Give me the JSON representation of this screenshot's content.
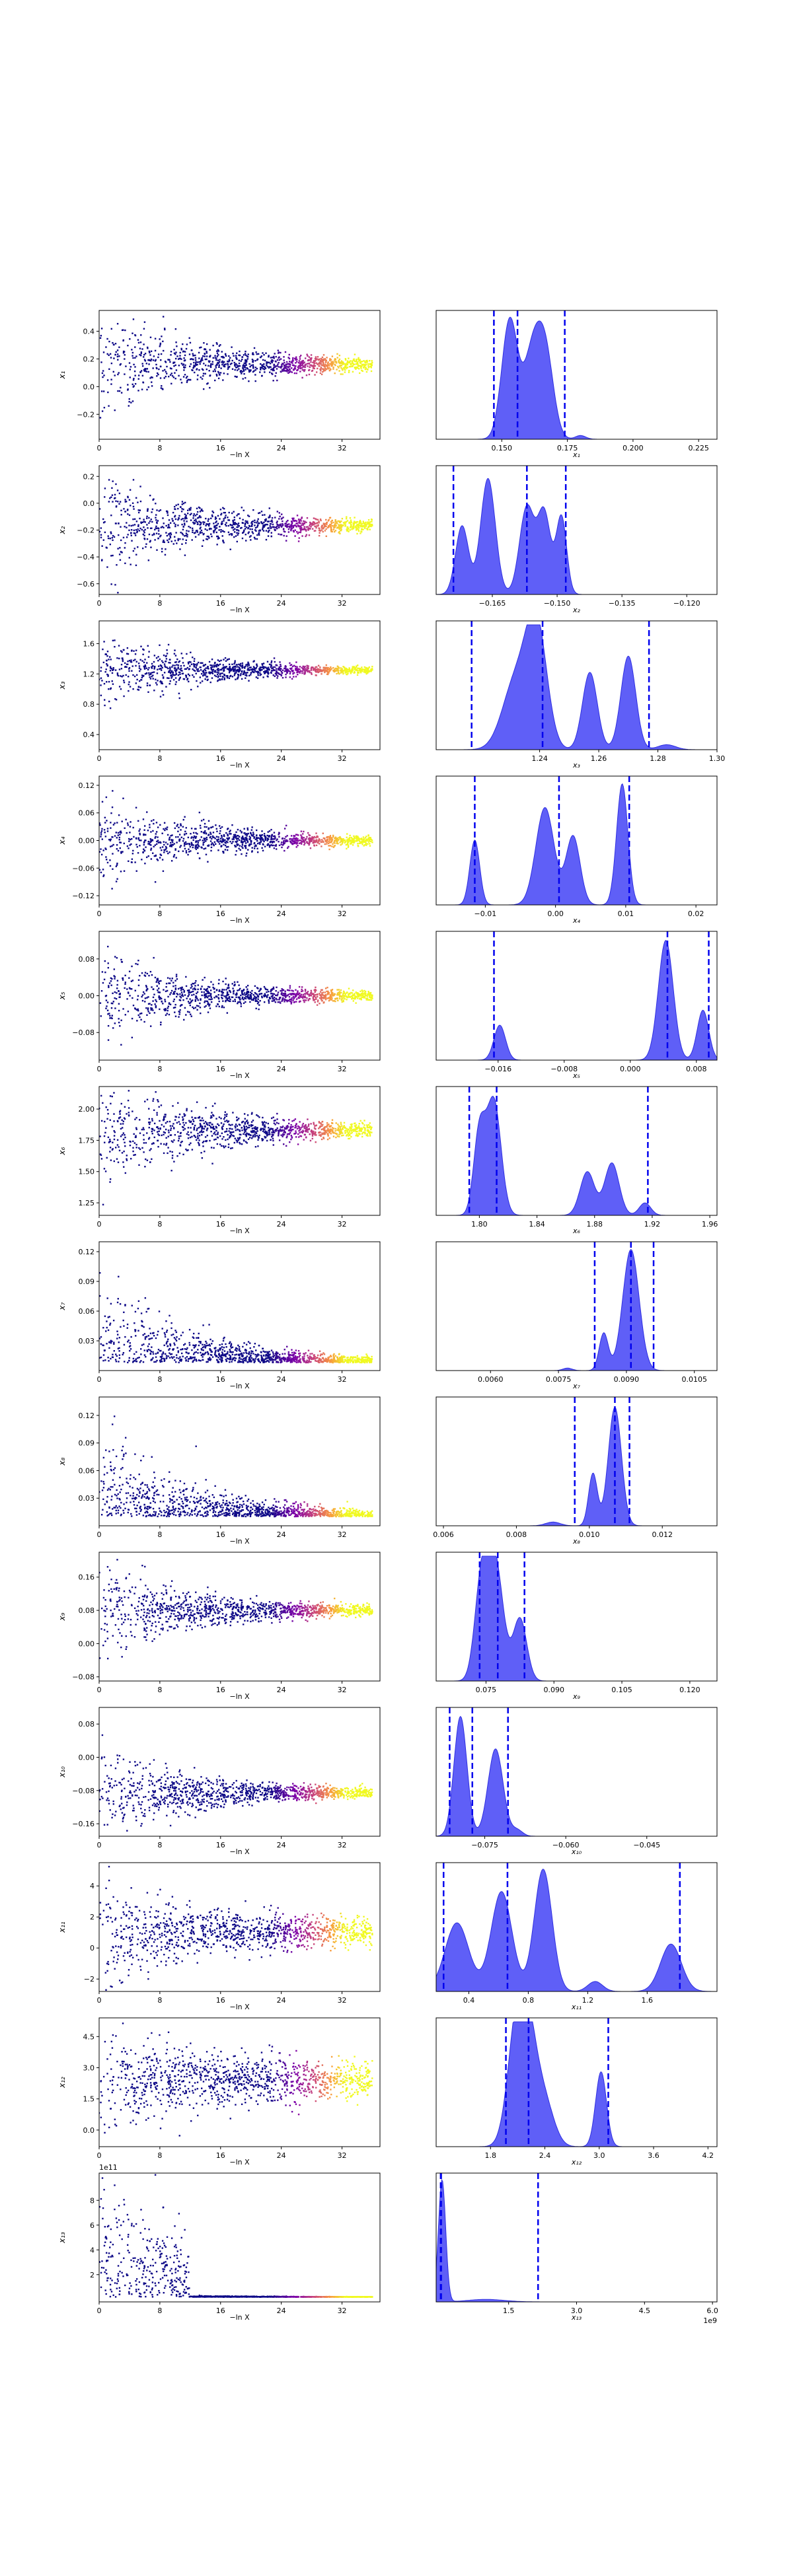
{
  "chart_data": [
    {
      "row": 1,
      "param": "x_1",
      "trace": {
        "type": "scatter",
        "xlabel": "−ln X",
        "ylabel": "x_1",
        "xlim": [
          0,
          37
        ],
        "xticks": [
          "0",
          "8",
          "16",
          "24",
          "32"
        ],
        "ylim": [
          -0.38,
          0.55
        ],
        "yticks": [
          "−0.2",
          "0.0",
          "0.2",
          "0.4"
        ],
        "yvals": [
          -0.2,
          0.0,
          0.2,
          0.4
        ],
        "center": 0.16,
        "spread_start": 0.2,
        "spread_end": 0.015,
        "scatter_end": 36
      },
      "posterior": {
        "type": "area",
        "xlabel": "x_1",
        "xlim": [
          0.125,
          0.232
        ],
        "xticks": [
          "0.150",
          "0.175",
          "0.200",
          "0.225"
        ],
        "xvals": [
          0.15,
          0.175,
          0.2,
          0.225
        ],
        "quantiles": [
          0.147,
          0.156,
          0.174
        ],
        "peaks": [
          {
            "x": 0.153,
            "h": 0.95,
            "w": 0.003
          },
          {
            "x": 0.162,
            "h": 0.72,
            "w": 0.0035
          },
          {
            "x": 0.167,
            "h": 0.55,
            "w": 0.003
          },
          {
            "x": 0.18,
            "h": 0.03,
            "w": 0.002
          }
        ]
      }
    },
    {
      "row": 2,
      "param": "x_2",
      "trace": {
        "type": "scatter",
        "xlabel": "−ln X",
        "ylabel": "x_2",
        "xlim": [
          0,
          37
        ],
        "xticks": [
          "0",
          "8",
          "16",
          "24",
          "32"
        ],
        "ylim": [
          -0.68,
          0.28
        ],
        "yticks": [
          "−0.6",
          "−0.4",
          "−0.2",
          "0.0",
          "0.2"
        ],
        "yvals": [
          -0.6,
          -0.4,
          -0.2,
          0.0,
          0.2
        ],
        "center": -0.17,
        "spread_start": 0.2,
        "spread_end": 0.015,
        "scatter_end": 36
      },
      "posterior": {
        "type": "area",
        "xlabel": "x_2",
        "xlim": [
          -0.178,
          -0.113
        ],
        "xticks": [
          "−0.165",
          "−0.150",
          "−0.135",
          "−0.120"
        ],
        "xvals": [
          -0.165,
          -0.15,
          -0.135,
          -0.12
        ],
        "quantiles": [
          -0.174,
          -0.157,
          -0.148
        ],
        "peaks": [
          {
            "x": -0.172,
            "h": 0.55,
            "w": 0.0015
          },
          {
            "x": -0.166,
            "h": 0.93,
            "w": 0.0017
          },
          {
            "x": -0.157,
            "h": 0.7,
            "w": 0.0017
          },
          {
            "x": -0.153,
            "h": 0.65,
            "w": 0.0015
          },
          {
            "x": -0.149,
            "h": 0.62,
            "w": 0.0012
          }
        ]
      }
    },
    {
      "row": 3,
      "param": "x_3",
      "trace": {
        "type": "scatter",
        "xlabel": "−ln X",
        "ylabel": "x_3",
        "xlim": [
          0,
          37
        ],
        "xticks": [
          "0",
          "8",
          "16",
          "24",
          "32"
        ],
        "ylim": [
          0.2,
          1.9
        ],
        "yticks": [
          "0.4",
          "0.8",
          "1.2",
          "1.6"
        ],
        "yvals": [
          0.4,
          0.8,
          1.2,
          1.6
        ],
        "center": 1.25,
        "spread_start": 0.25,
        "spread_end": 0.012,
        "scatter_end": 36
      },
      "posterior": {
        "type": "area",
        "xlabel": "x_3",
        "xlim": [
          1.205,
          1.3
        ],
        "xticks": [
          "1.24",
          "1.26",
          "1.28",
          "1.30"
        ],
        "xvals": [
          1.24,
          1.26,
          1.28,
          1.3
        ],
        "quantiles": [
          1.217,
          1.241,
          1.277
        ],
        "peaks": [
          {
            "x": 1.232,
            "h": 0.55,
            "w": 0.0045
          },
          {
            "x": 1.239,
            "h": 0.95,
            "w": 0.0035
          },
          {
            "x": 1.257,
            "h": 0.62,
            "w": 0.0025
          },
          {
            "x": 1.27,
            "h": 0.75,
            "w": 0.0025
          },
          {
            "x": 1.283,
            "h": 0.04,
            "w": 0.003
          }
        ]
      }
    },
    {
      "row": 4,
      "param": "x_4",
      "trace": {
        "type": "scatter",
        "xlabel": "−ln X",
        "ylabel": "x_4",
        "xlim": [
          0,
          37
        ],
        "xticks": [
          "0",
          "8",
          "16",
          "24",
          "32"
        ],
        "ylim": [
          -0.14,
          0.14
        ],
        "yticks": [
          "−0.12",
          "−0.06",
          "0.00",
          "0.06",
          "0.12"
        ],
        "yvals": [
          -0.12,
          -0.06,
          0.0,
          0.06,
          0.12
        ],
        "center": 0.0,
        "spread_start": 0.05,
        "spread_end": 0.003,
        "scatter_end": 36
      },
      "posterior": {
        "type": "area",
        "xlabel": "x_4",
        "xlim": [
          -0.017,
          0.023
        ],
        "xticks": [
          "−0.01",
          "0.00",
          "0.01",
          "0.02"
        ],
        "xvals": [
          -0.01,
          0.0,
          0.01,
          0.02
        ],
        "quantiles": [
          -0.0115,
          0.0005,
          0.0105
        ],
        "peaks": [
          {
            "x": -0.0115,
            "h": 0.52,
            "w": 0.0007
          },
          {
            "x": -0.0015,
            "h": 0.78,
            "w": 0.0013
          },
          {
            "x": 0.0025,
            "h": 0.55,
            "w": 0.001
          },
          {
            "x": 0.0095,
            "h": 0.97,
            "w": 0.0008
          }
        ]
      }
    },
    {
      "row": 5,
      "param": "x_5",
      "trace": {
        "type": "scatter",
        "xlabel": "−ln X",
        "ylabel": "x_5",
        "xlim": [
          0,
          37
        ],
        "xticks": [
          "0",
          "8",
          "16",
          "24",
          "32"
        ],
        "ylim": [
          -0.14,
          0.14
        ],
        "yticks": [
          "−0.08",
          "0.00",
          "0.08"
        ],
        "yvals": [
          -0.08,
          0.0,
          0.08
        ],
        "center": 0.0,
        "spread_start": 0.05,
        "spread_end": 0.003,
        "scatter_end": 36
      },
      "posterior": {
        "type": "area",
        "xlabel": "x_5",
        "xlim": [
          -0.0235,
          0.0105
        ],
        "xticks": [
          "−0.016",
          "−0.008",
          "0.000",
          "0.008"
        ],
        "xvals": [
          -0.016,
          -0.008,
          0.0,
          0.008
        ],
        "quantiles": [
          -0.0165,
          0.0045,
          0.0095
        ],
        "peaks": [
          {
            "x": -0.0158,
            "h": 0.28,
            "w": 0.0007
          },
          {
            "x": 0.0043,
            "h": 0.96,
            "w": 0.0009
          },
          {
            "x": 0.0088,
            "h": 0.4,
            "w": 0.0007
          }
        ]
      }
    },
    {
      "row": 6,
      "param": "x_6",
      "trace": {
        "type": "scatter",
        "xlabel": "−ln X",
        "ylabel": "x_6",
        "xlim": [
          0,
          37
        ],
        "xticks": [
          "0",
          "8",
          "16",
          "24",
          "32"
        ],
        "ylim": [
          1.15,
          2.18
        ],
        "yticks": [
          "1.25",
          "1.50",
          "1.75",
          "2.00"
        ],
        "yvals": [
          1.25,
          1.5,
          1.75,
          2.0
        ],
        "center": 1.83,
        "spread_start": 0.22,
        "spread_end": 0.02,
        "scatter_end": 36
      },
      "posterior": {
        "type": "area",
        "xlabel": "x_6",
        "xlim": [
          1.77,
          1.965
        ],
        "xticks": [
          "1.80",
          "1.84",
          "1.88",
          "1.92",
          "1.96"
        ],
        "xvals": [
          1.8,
          1.84,
          1.88,
          1.92,
          1.96
        ],
        "quantiles": [
          1.793,
          1.812,
          1.917
        ],
        "peaks": [
          {
            "x": 1.8,
            "h": 0.65,
            "w": 0.004
          },
          {
            "x": 1.81,
            "h": 0.92,
            "w": 0.005
          },
          {
            "x": 1.875,
            "h": 0.35,
            "w": 0.005
          },
          {
            "x": 1.892,
            "h": 0.42,
            "w": 0.005
          },
          {
            "x": 1.915,
            "h": 0.1,
            "w": 0.004
          }
        ]
      }
    },
    {
      "row": 7,
      "param": "x_7",
      "trace": {
        "type": "scatter",
        "xlabel": "−ln X",
        "ylabel": "x_7",
        "xlim": [
          0,
          37
        ],
        "xticks": [
          "0",
          "8",
          "16",
          "24",
          "32"
        ],
        "ylim": [
          0.0,
          0.13
        ],
        "yticks": [
          "0.03",
          "0.06",
          "0.09",
          "0.12"
        ],
        "yvals": [
          0.03,
          0.06,
          0.09,
          0.12
        ],
        "center": 0.008,
        "spread_start": 0.03,
        "spread_end": 0.001,
        "decay": true,
        "scatter_end": 36
      },
      "posterior": {
        "type": "area",
        "xlabel": "x_7",
        "xlim": [
          0.0048,
          0.011
        ],
        "xticks": [
          "0.0060",
          "0.0075",
          "0.0090",
          "0.0105"
        ],
        "xvals": [
          0.006,
          0.0075,
          0.009,
          0.0105
        ],
        "quantiles": [
          0.0083,
          0.0091,
          0.0096
        ],
        "peaks": [
          {
            "x": 0.0085,
            "h": 0.3,
            "w": 0.0001
          },
          {
            "x": 0.0091,
            "h": 0.97,
            "w": 0.00018
          },
          {
            "x": 0.0077,
            "h": 0.02,
            "w": 0.0001
          }
        ]
      }
    },
    {
      "row": 8,
      "param": "x_8",
      "trace": {
        "type": "scatter",
        "xlabel": "−ln X",
        "ylabel": "x_8",
        "xlim": [
          0,
          37
        ],
        "xticks": [
          "0",
          "8",
          "16",
          "24",
          "32"
        ],
        "ylim": [
          0.0,
          0.14
        ],
        "yticks": [
          "0.03",
          "0.06",
          "0.09",
          "0.12"
        ],
        "yvals": [
          0.03,
          0.06,
          0.09,
          0.12
        ],
        "center": 0.01,
        "spread_start": 0.035,
        "spread_end": 0.001,
        "decay": true,
        "scatter_end": 36
      },
      "posterior": {
        "type": "area",
        "xlabel": "x_8",
        "xlim": [
          0.0058,
          0.0135
        ],
        "xticks": [
          "0.006",
          "0.008",
          "0.010",
          "0.012"
        ],
        "xvals": [
          0.006,
          0.008,
          0.01,
          0.012
        ],
        "quantiles": [
          0.0096,
          0.0107,
          0.0111
        ],
        "peaks": [
          {
            "x": 0.0101,
            "h": 0.42,
            "w": 0.00012
          },
          {
            "x": 0.0107,
            "h": 0.95,
            "w": 0.00018
          },
          {
            "x": 0.009,
            "h": 0.03,
            "w": 0.0002
          }
        ]
      }
    },
    {
      "row": 9,
      "param": "x_9",
      "trace": {
        "type": "scatter",
        "xlabel": "−ln X",
        "ylabel": "x_9",
        "xlim": [
          0,
          37
        ],
        "xticks": [
          "0",
          "8",
          "16",
          "24",
          "32"
        ],
        "ylim": [
          -0.09,
          0.22
        ],
        "yticks": [
          "−0.08",
          "0.00",
          "0.08",
          "0.16"
        ],
        "yvals": [
          -0.08,
          0.0,
          0.08,
          0.16
        ],
        "center": 0.08,
        "spread_start": 0.055,
        "spread_end": 0.004,
        "scatter_end": 36
      },
      "posterior": {
        "type": "area",
        "xlabel": "x_9",
        "xlim": [
          0.064,
          0.126
        ],
        "xticks": [
          "0.075",
          "0.090",
          "0.105",
          "0.120"
        ],
        "xvals": [
          0.075,
          0.09,
          0.105,
          0.12
        ],
        "quantiles": [
          0.0736,
          0.0776,
          0.0835
        ],
        "peaks": [
          {
            "x": 0.074,
            "h": 0.75,
            "w": 0.0015
          },
          {
            "x": 0.077,
            "h": 0.95,
            "w": 0.0018
          },
          {
            "x": 0.0825,
            "h": 0.5,
            "w": 0.0015
          }
        ]
      }
    },
    {
      "row": 10,
      "param": "x_10",
      "trace": {
        "type": "scatter",
        "xlabel": "−ln X",
        "ylabel": "x_10",
        "xlim": [
          0,
          37
        ],
        "xticks": [
          "0",
          "8",
          "16",
          "24",
          "32"
        ],
        "ylim": [
          -0.19,
          0.12
        ],
        "yticks": [
          "−0.16",
          "−0.08",
          "0.00",
          "0.08"
        ],
        "yvals": [
          -0.16,
          -0.08,
          0.0,
          0.08
        ],
        "center": -0.085,
        "spread_start": 0.055,
        "spread_end": 0.004,
        "scatter_end": 36
      },
      "posterior": {
        "type": "area",
        "xlabel": "x_10",
        "xlim": [
          -0.084,
          -0.032
        ],
        "xticks": [
          "−0.075",
          "−0.060",
          "−0.045"
        ],
        "xvals": [
          -0.075,
          -0.06,
          -0.045
        ],
        "quantiles": [
          -0.0815,
          -0.0773,
          -0.0707
        ],
        "peaks": [
          {
            "x": -0.0795,
            "h": 0.96,
            "w": 0.0012
          },
          {
            "x": -0.073,
            "h": 0.7,
            "w": 0.0014
          },
          {
            "x": -0.069,
            "h": 0.05,
            "w": 0.001
          }
        ]
      }
    },
    {
      "row": 11,
      "param": "x_11",
      "trace": {
        "type": "scatter",
        "xlabel": "−ln X",
        "ylabel": "x_11",
        "xlim": [
          0,
          37
        ],
        "xticks": [
          "0",
          "8",
          "16",
          "24",
          "32"
        ],
        "ylim": [
          -2.8,
          5.5
        ],
        "yticks": [
          "−2",
          "0",
          "2",
          "4"
        ],
        "yvals": [
          -2,
          0,
          2,
          4
        ],
        "center": 1.0,
        "spread_start": 1.3,
        "spread_end": 0.4,
        "scatter_end": 36
      },
      "posterior": {
        "type": "area",
        "xlabel": "x_11",
        "xlim": [
          0.18,
          2.07
        ],
        "xticks": [
          "0.4",
          "0.8",
          "1.2",
          "1.6"
        ],
        "xvals": [
          0.4,
          0.8,
          1.2,
          1.6
        ],
        "quantiles": [
          0.23,
          0.66,
          1.82
        ],
        "peaks": [
          {
            "x": 0.32,
            "h": 0.55,
            "w": 0.08
          },
          {
            "x": 0.62,
            "h": 0.8,
            "w": 0.07
          },
          {
            "x": 0.9,
            "h": 0.98,
            "w": 0.06
          },
          {
            "x": 1.25,
            "h": 0.08,
            "w": 0.05
          },
          {
            "x": 1.76,
            "h": 0.38,
            "w": 0.07
          }
        ]
      }
    },
    {
      "row": 12,
      "param": "x_12",
      "trace": {
        "type": "scatter",
        "xlabel": "−ln X",
        "ylabel": "x_12",
        "xlim": [
          0,
          37
        ],
        "xticks": [
          "0",
          "8",
          "16",
          "24",
          "32"
        ],
        "ylim": [
          -0.8,
          5.4
        ],
        "yticks": [
          "0.0",
          "1.5",
          "3.0",
          "4.5"
        ],
        "yvals": [
          0.0,
          1.5,
          3.0,
          4.5
        ],
        "center": 2.4,
        "spread_start": 1.0,
        "spread_end": 0.4,
        "scatter_end": 36
      },
      "posterior": {
        "type": "area",
        "xlabel": "x_12",
        "xlim": [
          1.2,
          4.3
        ],
        "xticks": [
          "1.8",
          "2.4",
          "3.0",
          "3.6",
          "4.2"
        ],
        "xvals": [
          1.8,
          2.4,
          3.0,
          3.6,
          4.2
        ],
        "quantiles": [
          1.97,
          2.22,
          3.1
        ],
        "peaks": [
          {
            "x": 2.08,
            "h": 0.6,
            "w": 0.1
          },
          {
            "x": 2.2,
            "h": 0.95,
            "w": 0.12
          },
          {
            "x": 2.42,
            "h": 0.25,
            "w": 0.1
          },
          {
            "x": 3.02,
            "h": 0.6,
            "w": 0.06
          }
        ]
      }
    },
    {
      "row": 13,
      "param": "x_13",
      "trace": {
        "type": "scatter",
        "xlabel": "−ln X",
        "ylabel": "x_13",
        "xlim": [
          0,
          37
        ],
        "xticks": [
          "0",
          "8",
          "16",
          "24",
          "32"
        ],
        "ylim": [
          -0.2,
          10.2
        ],
        "yticks": [
          "2",
          "4",
          "6",
          "8"
        ],
        "yvals": [
          2,
          4,
          6,
          8
        ],
        "offset_text": "1e11",
        "center": 0.2,
        "spread_start": 6,
        "spread_end": 0.05,
        "heavy": true,
        "scatter_end": 36
      },
      "posterior": {
        "type": "area",
        "xlabel": "x_13",
        "xlim": [
          -0.1,
          6.1
        ],
        "xticks": [
          "1.5",
          "3.0",
          "4.5",
          "6.0"
        ],
        "xvals": [
          1.5,
          3.0,
          4.5,
          6.0
        ],
        "offset_text": "1e9",
        "quantiles": [
          0.0,
          0.01,
          2.15
        ],
        "peaks": [
          {
            "x": 0.03,
            "h": 0.98,
            "w": 0.08
          },
          {
            "x": 1.0,
            "h": 0.02,
            "w": 0.4
          }
        ]
      }
    }
  ]
}
